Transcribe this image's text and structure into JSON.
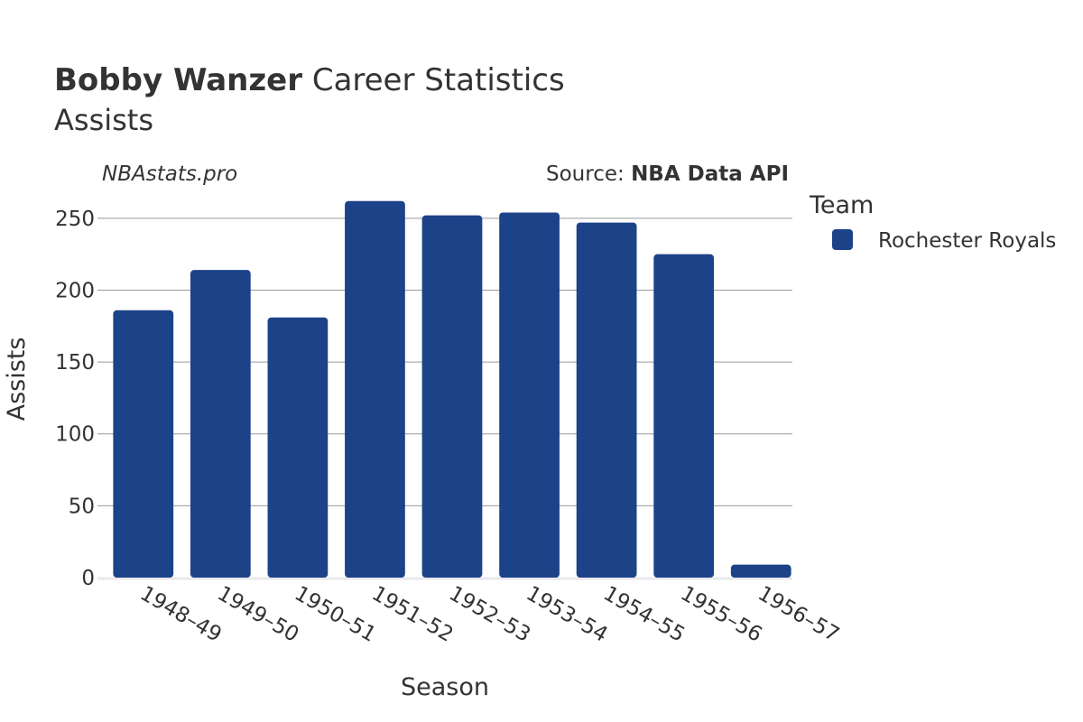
{
  "header": {
    "title_bold": "Bobby Wanzer",
    "title_rest": " Career Statistics",
    "subtitle": "Assists"
  },
  "watermark": "NBAstats.pro",
  "source": {
    "prefix": "Source: ",
    "name": "NBA Data API"
  },
  "legend": {
    "title": "Team",
    "items": [
      {
        "label": "Rochester Royals",
        "color": "#1c4288"
      }
    ]
  },
  "chart_data": {
    "type": "bar",
    "xlabel": "Season",
    "ylabel": "Assists",
    "ylim": [
      0,
      270
    ],
    "yticks": [
      0,
      50,
      100,
      150,
      200,
      250
    ],
    "grid": true,
    "legend_position": "right",
    "categories": [
      "1948–49",
      "1949–50",
      "1950–51",
      "1951–52",
      "1952–53",
      "1953–54",
      "1954–55",
      "1955–56",
      "1956–57"
    ],
    "series": [
      {
        "name": "Rochester Royals",
        "color": "#1c4288",
        "values": [
          186,
          214,
          181,
          262,
          252,
          254,
          247,
          225,
          9
        ]
      }
    ]
  }
}
